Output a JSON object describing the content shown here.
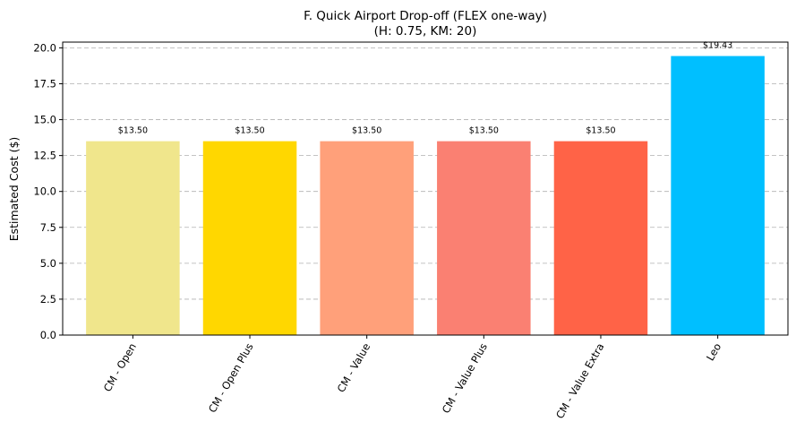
{
  "chart_data": {
    "type": "bar",
    "title": "F. Quick Airport Drop-off (FLEX one-way)",
    "subtitle": "(H: 0.75, KM: 20)",
    "xlabel": "",
    "ylabel": "Estimated Cost ($)",
    "categories": [
      "CM - Open",
      "CM - Open Plus",
      "CM - Value",
      "CM - Value Plus",
      "CM - Value Extra",
      "Leo"
    ],
    "values": [
      13.5,
      13.5,
      13.5,
      13.5,
      13.5,
      19.43
    ],
    "value_labels": [
      "$13.50",
      "$13.50",
      "$13.50",
      "$13.50",
      "$13.50",
      "$19.43"
    ],
    "colors": [
      "#F0E68C",
      "#FFD700",
      "#FFA07A",
      "#FA8072",
      "#FF6347",
      "#00BFFF"
    ],
    "ylim": [
      0,
      20.4
    ],
    "yticks": [
      0.0,
      2.5,
      5.0,
      7.5,
      10.0,
      12.5,
      15.0,
      17.5,
      20.0
    ],
    "ytick_labels": [
      "0.0",
      "2.5",
      "5.0",
      "7.5",
      "10.0",
      "12.5",
      "15.0",
      "17.5",
      "20.0"
    ],
    "grid": "y-dashed",
    "legend": "none"
  }
}
